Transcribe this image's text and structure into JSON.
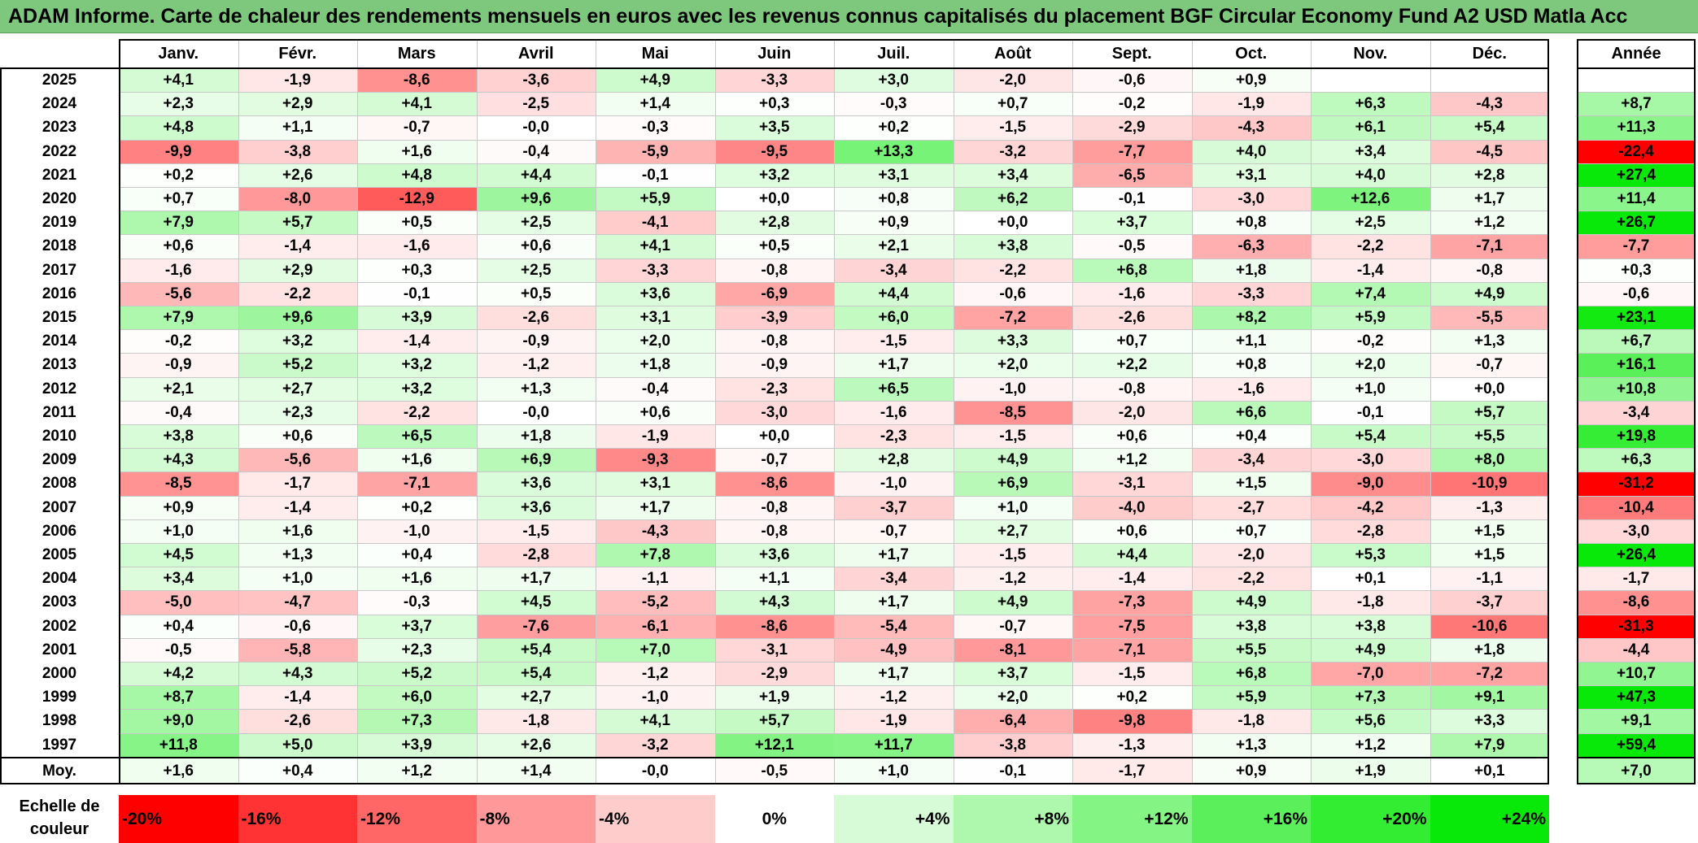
{
  "title": "ADAM Informe. Carte de chaleur des rendements mensuels en euros avec les revenus connus capitalisés du placement BGF Circular Economy Fund A2 USD Matla Acc",
  "chart_data": {
    "type": "heatmap",
    "months": [
      "Janv.",
      "Févr.",
      "Mars",
      "Avril",
      "Mai",
      "Juin",
      "Juil.",
      "Août",
      "Sept.",
      "Oct.",
      "Nov.",
      "Déc."
    ],
    "year_header": "Année",
    "avg_label": "Moy.",
    "rows": [
      {
        "year": "2025",
        "months": [
          "+4,1",
          "-1,9",
          "-8,6",
          "-3,6",
          "+4,9",
          "-3,3",
          "+3,0",
          "-2,0",
          "-0,6",
          "+0,9",
          "",
          ""
        ],
        "annual": ""
      },
      {
        "year": "2024",
        "months": [
          "+2,3",
          "+2,9",
          "+4,1",
          "-2,5",
          "+1,4",
          "+0,3",
          "-0,3",
          "+0,7",
          "-0,2",
          "-1,9",
          "+6,3",
          "-4,3"
        ],
        "annual": "+8,7"
      },
      {
        "year": "2023",
        "months": [
          "+4,8",
          "+1,1",
          "-0,7",
          "-0,0",
          "-0,3",
          "+3,5",
          "+0,2",
          "-1,5",
          "-2,9",
          "-4,3",
          "+6,1",
          "+5,4"
        ],
        "annual": "+11,3"
      },
      {
        "year": "2022",
        "months": [
          "-9,9",
          "-3,8",
          "+1,6",
          "-0,4",
          "-5,9",
          "-9,5",
          "+13,3",
          "-3,2",
          "-7,7",
          "+4,0",
          "+3,4",
          "-4,5"
        ],
        "annual": "-22,4"
      },
      {
        "year": "2021",
        "months": [
          "+0,2",
          "+2,6",
          "+4,8",
          "+4,4",
          "-0,1",
          "+3,2",
          "+3,1",
          "+3,4",
          "-6,5",
          "+3,1",
          "+4,0",
          "+2,8"
        ],
        "annual": "+27,4"
      },
      {
        "year": "2020",
        "months": [
          "+0,7",
          "-8,0",
          "-12,9",
          "+9,6",
          "+5,9",
          "+0,0",
          "+0,8",
          "+6,2",
          "-0,1",
          "-3,0",
          "+12,6",
          "+1,7"
        ],
        "annual": "+11,4"
      },
      {
        "year": "2019",
        "months": [
          "+7,9",
          "+5,7",
          "+0,5",
          "+2,5",
          "-4,1",
          "+2,8",
          "+0,9",
          "+0,0",
          "+3,7",
          "+0,8",
          "+2,5",
          "+1,2"
        ],
        "annual": "+26,7"
      },
      {
        "year": "2018",
        "months": [
          "+0,6",
          "-1,4",
          "-1,6",
          "+0,6",
          "+4,1",
          "+0,5",
          "+2,1",
          "+3,8",
          "-0,5",
          "-6,3",
          "-2,2",
          "-7,1"
        ],
        "annual": "-7,7"
      },
      {
        "year": "2017",
        "months": [
          "-1,6",
          "+2,9",
          "+0,3",
          "+2,5",
          "-3,3",
          "-0,8",
          "-3,4",
          "-2,2",
          "+6,8",
          "+1,8",
          "-1,4",
          "-0,8"
        ],
        "annual": "+0,3"
      },
      {
        "year": "2016",
        "months": [
          "-5,6",
          "-2,2",
          "-0,1",
          "+0,5",
          "+3,6",
          "-6,9",
          "+4,4",
          "-0,6",
          "-1,6",
          "-3,3",
          "+7,4",
          "+4,9"
        ],
        "annual": "-0,6"
      },
      {
        "year": "2015",
        "months": [
          "+7,9",
          "+9,6",
          "+3,9",
          "-2,6",
          "+3,1",
          "-3,9",
          "+6,0",
          "-7,2",
          "-2,6",
          "+8,2",
          "+5,9",
          "-5,5"
        ],
        "annual": "+23,1"
      },
      {
        "year": "2014",
        "months": [
          "-0,2",
          "+3,2",
          "-1,4",
          "-0,9",
          "+2,0",
          "-0,8",
          "-1,5",
          "+3,3",
          "+0,7",
          "+1,1",
          "-0,2",
          "+1,3"
        ],
        "annual": "+6,7"
      },
      {
        "year": "2013",
        "months": [
          "-0,9",
          "+5,2",
          "+3,2",
          "-1,2",
          "+1,8",
          "-0,9",
          "+1,7",
          "+2,0",
          "+2,2",
          "+0,8",
          "+2,0",
          "-0,7"
        ],
        "annual": "+16,1"
      },
      {
        "year": "2012",
        "months": [
          "+2,1",
          "+2,7",
          "+3,2",
          "+1,3",
          "-0,4",
          "-2,3",
          "+6,5",
          "-1,0",
          "-0,8",
          "-1,6",
          "+1,0",
          "+0,0"
        ],
        "annual": "+10,8"
      },
      {
        "year": "2011",
        "months": [
          "-0,4",
          "+2,3",
          "-2,2",
          "-0,0",
          "+0,6",
          "-3,0",
          "-1,6",
          "-8,5",
          "-2,0",
          "+6,6",
          "-0,1",
          "+5,7"
        ],
        "annual": "-3,4"
      },
      {
        "year": "2010",
        "months": [
          "+3,8",
          "+0,6",
          "+6,5",
          "+1,8",
          "-1,9",
          "+0,0",
          "-2,3",
          "-1,5",
          "+0,6",
          "+0,4",
          "+5,4",
          "+5,5"
        ],
        "annual": "+19,8"
      },
      {
        "year": "2009",
        "months": [
          "+4,3",
          "-5,6",
          "+1,6",
          "+6,9",
          "-9,3",
          "-0,7",
          "+2,8",
          "+4,9",
          "+1,2",
          "-3,4",
          "-3,0",
          "+8,0"
        ],
        "annual": "+6,3"
      },
      {
        "year": "2008",
        "months": [
          "-8,5",
          "-1,7",
          "-7,1",
          "+3,6",
          "+3,1",
          "-8,6",
          "-1,0",
          "+6,9",
          "-3,1",
          "+1,5",
          "-9,0",
          "-10,9"
        ],
        "annual": "-31,2"
      },
      {
        "year": "2007",
        "months": [
          "+0,9",
          "-1,4",
          "+0,2",
          "+3,6",
          "+1,7",
          "-0,8",
          "-3,7",
          "+1,0",
          "-4,0",
          "-2,7",
          "-4,2",
          "-1,3"
        ],
        "annual": "-10,4"
      },
      {
        "year": "2006",
        "months": [
          "+1,0",
          "+1,6",
          "-1,0",
          "-1,5",
          "-4,3",
          "-0,8",
          "-0,7",
          "+2,7",
          "+0,6",
          "+0,7",
          "-2,8",
          "+1,5"
        ],
        "annual": "-3,0"
      },
      {
        "year": "2005",
        "months": [
          "+4,5",
          "+1,3",
          "+0,4",
          "-2,8",
          "+7,8",
          "+3,6",
          "+1,7",
          "-1,5",
          "+4,4",
          "-2,0",
          "+5,3",
          "+1,5"
        ],
        "annual": "+26,4"
      },
      {
        "year": "2004",
        "months": [
          "+3,4",
          "+1,0",
          "+1,6",
          "+1,7",
          "-1,1",
          "+1,1",
          "-3,4",
          "-1,2",
          "-1,4",
          "-2,2",
          "+0,1",
          "-1,1"
        ],
        "annual": "-1,7"
      },
      {
        "year": "2003",
        "months": [
          "-5,0",
          "-4,7",
          "-0,3",
          "+4,5",
          "-5,2",
          "+4,3",
          "+1,7",
          "+4,9",
          "-7,3",
          "+4,9",
          "-1,8",
          "-3,7"
        ],
        "annual": "-8,6"
      },
      {
        "year": "2002",
        "months": [
          "+0,4",
          "-0,6",
          "+3,7",
          "-7,6",
          "-6,1",
          "-8,6",
          "-5,4",
          "-0,7",
          "-7,5",
          "+3,8",
          "+3,8",
          "-10,6"
        ],
        "annual": "-31,3"
      },
      {
        "year": "2001",
        "months": [
          "-0,5",
          "-5,8",
          "+2,3",
          "+5,4",
          "+7,0",
          "-3,1",
          "-4,9",
          "-8,1",
          "-7,1",
          "+5,5",
          "+4,9",
          "+1,8"
        ],
        "annual": "-4,4"
      },
      {
        "year": "2000",
        "months": [
          "+4,2",
          "+4,3",
          "+5,2",
          "+5,4",
          "-1,2",
          "-2,9",
          "+1,7",
          "+3,7",
          "-1,5",
          "+6,8",
          "-7,0",
          "-7,2"
        ],
        "annual": "+10,7"
      },
      {
        "year": "1999",
        "months": [
          "+8,7",
          "-1,4",
          "+6,0",
          "+2,7",
          "-1,0",
          "+1,9",
          "-1,2",
          "+2,0",
          "+0,2",
          "+5,9",
          "+7,3",
          "+9,1"
        ],
        "annual": "+47,3"
      },
      {
        "year": "1998",
        "months": [
          "+9,0",
          "-2,6",
          "+7,3",
          "-1,8",
          "+4,1",
          "+5,7",
          "-1,9",
          "-6,4",
          "-9,8",
          "-1,8",
          "+5,6",
          "+3,3"
        ],
        "annual": "+9,1"
      },
      {
        "year": "1997",
        "months": [
          "+11,8",
          "+5,0",
          "+3,9",
          "+2,6",
          "-3,2",
          "+12,1",
          "+11,7",
          "-3,8",
          "-1,3",
          "+1,3",
          "+1,2",
          "+7,9"
        ],
        "annual": "+59,4"
      }
    ],
    "averages": {
      "months": [
        "+1,6",
        "+0,4",
        "+1,2",
        "+1,4",
        "-0,0",
        "-0,5",
        "+1,0",
        "-0,1",
        "-1,7",
        "+0,9",
        "+1,9",
        "+0,1"
      ],
      "annual": "+7,0"
    },
    "legend": {
      "label": "Echelle de\ncouleur",
      "steps": [
        {
          "label": "-20%",
          "value": -20,
          "color": "#ff0000"
        },
        {
          "label": "-16%",
          "value": -16,
          "color": "#ff3333"
        },
        {
          "label": "-12%",
          "value": -12,
          "color": "#ff6666"
        },
        {
          "label": "-8%",
          "value": -8,
          "color": "#ff9999"
        },
        {
          "label": "-4%",
          "value": -4,
          "color": "#ffcccc"
        },
        {
          "label": "0%",
          "value": 0,
          "color": "#ffffff"
        },
        {
          "label": "+4%",
          "value": 4,
          "color": "#d6fbd6"
        },
        {
          "label": "+8%",
          "value": 8,
          "color": "#adf8ad"
        },
        {
          "label": "+12%",
          "value": 12,
          "color": "#84f484"
        },
        {
          "label": "+16%",
          "value": 16,
          "color": "#5bf05b"
        },
        {
          "label": "+20%",
          "value": 20,
          "color": "#32ed32"
        },
        {
          "label": "+24%",
          "value": 24,
          "color": "#09e909"
        }
      ]
    }
  }
}
